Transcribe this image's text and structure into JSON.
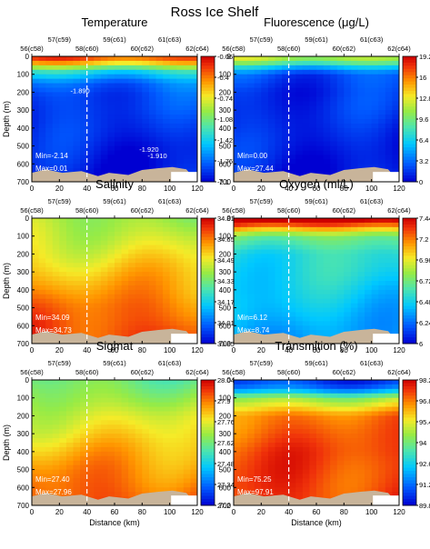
{
  "figure_title": "Ross Ice Shelf",
  "colors": {
    "seafloor": "#C8B49A",
    "marker_line": "#FFFFFF"
  },
  "stations": [
    "56(c58)",
    "57(c59)",
    "58(c60)",
    "59(c61)",
    "60(c62)",
    "61(c63)",
    "62(c64)"
  ],
  "chart_data": [
    {
      "type": "heatmap",
      "title": "Temperature",
      "xlabel": "",
      "ylabel": "Depth (m)",
      "xlim": [
        0,
        120
      ],
      "ylim": [
        700,
        0
      ],
      "x_ticks": [
        "0",
        "20",
        "40",
        "60",
        "80",
        "100",
        "120"
      ],
      "y_ticks": [
        "0",
        "100",
        "200",
        "300",
        "400",
        "500",
        "600",
        "700"
      ],
      "colorbar_ticks": [
        "-0.06",
        "-0.4",
        "-0.74",
        "-1.08",
        "-1.42",
        "-1.76",
        "-2.1"
      ],
      "colorbar_range": [
        -2.1,
        -0.06
      ],
      "annotations": [
        "Min=-2.14",
        "Max=0.01"
      ],
      "contour_labels": [
        "-1.890",
        "-1.920",
        "-1.910"
      ],
      "section_depth": [
        [
          0,
          -0.2
        ],
        [
          40,
          -0.6
        ],
        [
          80,
          -1.3
        ],
        [
          150,
          -1.75
        ],
        [
          220,
          -1.88
        ],
        [
          350,
          -1.95
        ],
        [
          500,
          -2.0
        ],
        [
          700,
          -2.02
        ]
      ]
    },
    {
      "type": "heatmap",
      "title": "Fluorescence (μg/L)",
      "xlabel": "",
      "ylabel": "",
      "xlim": [
        0,
        120
      ],
      "ylim": [
        700,
        0
      ],
      "x_ticks": [
        "0",
        "20",
        "40",
        "60",
        "80",
        "100",
        "120"
      ],
      "y_ticks": [
        "0",
        "100",
        "200",
        "300",
        "400",
        "500",
        "600",
        "700"
      ],
      "colorbar_ticks": [
        "19.2",
        "16",
        "12.8",
        "9.6",
        "6.4",
        "3.2",
        "0"
      ],
      "colorbar_range": [
        0,
        19.2
      ],
      "annotations": [
        "Min=0.00",
        "Max=27.44"
      ],
      "section_depth": [
        [
          0,
          12
        ],
        [
          30,
          10
        ],
        [
          60,
          6
        ],
        [
          100,
          2.5
        ],
        [
          200,
          1.5
        ],
        [
          400,
          1.0
        ],
        [
          700,
          0.8
        ]
      ]
    },
    {
      "type": "heatmap",
      "title": "Salinity",
      "xlabel": "",
      "ylabel": "Depth (m)",
      "xlim": [
        0,
        120
      ],
      "ylim": [
        700,
        0
      ],
      "x_ticks": [
        "0",
        "20",
        "40",
        "60",
        "80",
        "100",
        "120"
      ],
      "y_ticks": [
        "0",
        "100",
        "200",
        "300",
        "400",
        "500",
        "600",
        "700"
      ],
      "colorbar_ticks": [
        "34.81",
        "34.65",
        "34.49",
        "34.33",
        "34.17",
        "34.01",
        "33.85"
      ],
      "colorbar_range": [
        33.85,
        34.81
      ],
      "annotations": [
        "Min=34.09",
        "Max=34.73"
      ],
      "section_depth": [
        [
          0,
          34.4
        ],
        [
          100,
          34.45
        ],
        [
          200,
          34.5
        ],
        [
          300,
          34.55
        ],
        [
          400,
          34.6
        ],
        [
          500,
          34.66
        ],
        [
          600,
          34.7
        ],
        [
          700,
          34.73
        ]
      ]
    },
    {
      "type": "heatmap",
      "title": "Oxygen (ml/L)",
      "xlabel": "",
      "ylabel": "",
      "xlim": [
        0,
        120
      ],
      "ylim": [
        700,
        0
      ],
      "x_ticks": [
        "0",
        "20",
        "40",
        "60",
        "80",
        "100",
        "120"
      ],
      "y_ticks": [
        "0",
        "100",
        "200",
        "300",
        "400",
        "500",
        "600",
        "700"
      ],
      "colorbar_ticks": [
        "7.44",
        "7.2",
        "6.96",
        "6.72",
        "6.48",
        "6.24",
        "6"
      ],
      "colorbar_range": [
        6.0,
        7.44
      ],
      "annotations": [
        "Min=6.12",
        "Max=8.74"
      ],
      "section_depth": [
        [
          0,
          7.6
        ],
        [
          50,
          7.2
        ],
        [
          100,
          6.75
        ],
        [
          200,
          6.55
        ],
        [
          400,
          6.45
        ],
        [
          700,
          6.35
        ]
      ]
    },
    {
      "type": "heatmap",
      "title": "Sigmat",
      "xlabel": "Distance (km)",
      "ylabel": "Depth (m)",
      "xlim": [
        0,
        120
      ],
      "ylim": [
        700,
        0
      ],
      "x_ticks": [
        "0",
        "20",
        "40",
        "60",
        "80",
        "100",
        "120"
      ],
      "y_ticks": [
        "0",
        "100",
        "200",
        "300",
        "400",
        "500",
        "600",
        "700"
      ],
      "colorbar_ticks": [
        "28.04",
        "27.9",
        "27.76",
        "27.62",
        "27.48",
        "27.34",
        "27.2"
      ],
      "colorbar_range": [
        27.2,
        28.04
      ],
      "annotations": [
        "Min=27.40",
        "Max=27.96"
      ],
      "section_depth": [
        [
          0,
          27.62
        ],
        [
          100,
          27.68
        ],
        [
          200,
          27.74
        ],
        [
          300,
          27.78
        ],
        [
          400,
          27.83
        ],
        [
          500,
          27.88
        ],
        [
          600,
          27.92
        ],
        [
          700,
          27.95
        ]
      ]
    },
    {
      "type": "heatmap",
      "title": "Transmition (%)",
      "xlabel": "Distance (km)",
      "ylabel": "",
      "xlim": [
        0,
        120
      ],
      "ylim": [
        700,
        0
      ],
      "x_ticks": [
        "0",
        "20",
        "40",
        "60",
        "80",
        "100",
        "120"
      ],
      "y_ticks": [
        "0",
        "100",
        "200",
        "300",
        "400",
        "500",
        "600",
        "700"
      ],
      "colorbar_ticks": [
        "98.2",
        "96.8",
        "95.4",
        "94",
        "92.6",
        "91.2",
        "89.8"
      ],
      "colorbar_range": [
        89.8,
        98.2
      ],
      "annotations": [
        "Min=75.25",
        "Max=97.91"
      ],
      "section_depth": [
        [
          0,
          90.5
        ],
        [
          50,
          91.5
        ],
        [
          100,
          94.5
        ],
        [
          200,
          96.8
        ],
        [
          400,
          97.3
        ],
        [
          700,
          97.5
        ]
      ]
    }
  ]
}
